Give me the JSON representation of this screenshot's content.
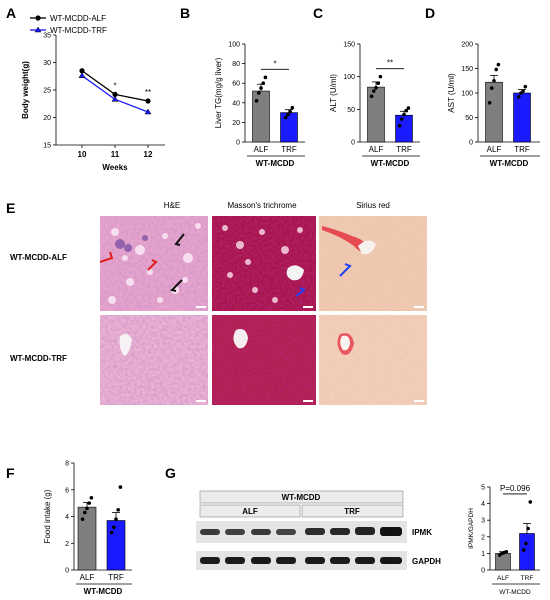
{
  "panels": {
    "A": "A",
    "B": "B",
    "C": "C",
    "D": "D",
    "E": "E",
    "F": "F",
    "G": "G"
  },
  "colors": {
    "alf": "#7f7f7f",
    "trf": "#1a1aff",
    "he_bg": "#e8a6cf",
    "tri_bg": "#a4134a",
    "sirius_bg": "#f0cbb2"
  },
  "chart_data": [
    {
      "id": "A",
      "type": "line",
      "x": [
        10,
        11,
        12
      ],
      "xlabel": "Weeks",
      "ylabel": "Body weight(g)",
      "ylim": [
        15,
        35
      ],
      "yticks": [
        15,
        20,
        25,
        30,
        35
      ],
      "series": [
        {
          "name": "WT-MCDD-ALF",
          "values": [
            28.5,
            24.2,
            23.0
          ],
          "marker": "circle",
          "color": "#000000"
        },
        {
          "name": "WT-MCDD-TRF",
          "values": [
            27.6,
            23.3,
            21.0
          ],
          "marker": "triangle",
          "color": "#1a1aff"
        }
      ],
      "annotations": [
        "*",
        "**"
      ]
    },
    {
      "id": "B",
      "type": "bar",
      "categories": [
        "ALF",
        "TRF"
      ],
      "values": [
        52,
        30
      ],
      "errors": [
        7,
        3
      ],
      "points": [
        [
          42,
          50,
          55,
          60,
          66
        ],
        [
          25,
          28,
          31,
          35
        ]
      ],
      "ylabel": "Liver TG(mg/g liver)",
      "ylim": [
        0,
        100
      ],
      "yticks": [
        0,
        20,
        40,
        60,
        80,
        100
      ],
      "group_label": "WT-MCDD",
      "significance": "*"
    },
    {
      "id": "C",
      "type": "bar",
      "categories": [
        "ALF",
        "TRF"
      ],
      "values": [
        84,
        41
      ],
      "errors": [
        8,
        6
      ],
      "points": [
        [
          70,
          78,
          83,
          90,
          100
        ],
        [
          25,
          35,
          42,
          48,
          52
        ]
      ],
      "ylabel": "ALT (U/ml)",
      "ylim": [
        0,
        150
      ],
      "yticks": [
        0,
        50,
        100,
        150
      ],
      "group_label": "WT-MCDD",
      "significance": "**"
    },
    {
      "id": "D",
      "type": "bar",
      "categories": [
        "ALF",
        "TRF"
      ],
      "values": [
        122,
        100
      ],
      "errors": [
        14,
        7
      ],
      "points": [
        [
          80,
          110,
          125,
          148,
          158
        ],
        [
          92,
          100,
          104,
          113
        ]
      ],
      "ylabel": "AST (U/ml)",
      "ylim": [
        0,
        200
      ],
      "yticks": [
        0,
        50,
        100,
        150,
        200
      ],
      "group_label": "WT-MCDD"
    },
    {
      "id": "F",
      "type": "bar",
      "categories": [
        "ALF",
        "TRF"
      ],
      "values": [
        4.7,
        3.7
      ],
      "errors": [
        0.35,
        0.6
      ],
      "points": [
        [
          3.8,
          4.3,
          4.6,
          5.0,
          5.4
        ],
        [
          2.8,
          3.2,
          3.8,
          4.5,
          6.2
        ]
      ],
      "ylabel": "Food intake (g)",
      "ylim": [
        0,
        8
      ],
      "yticks": [
        0,
        2,
        4,
        6,
        8
      ],
      "group_label": "WT-MCDD"
    },
    {
      "id": "G_quant",
      "type": "bar",
      "categories": [
        "ALF",
        "TRF"
      ],
      "values": [
        1.0,
        2.2
      ],
      "errors": [
        0.1,
        0.6
      ],
      "points": [
        [
          0.9,
          1.0,
          1.05,
          1.1
        ],
        [
          1.2,
          1.6,
          2.5,
          4.1
        ]
      ],
      "ylabel": "IPMK/GAPDH",
      "ylim": [
        0,
        5
      ],
      "yticks": [
        0,
        1,
        2,
        3,
        4,
        5
      ],
      "group_label": "WT-MCDD",
      "significance": "P=0.096"
    }
  ],
  "histology": {
    "columns": [
      "H&E",
      "Masson's trichrome",
      "Sirius red"
    ],
    "rows": [
      "WT-MCDD-ALF",
      "WT-MCDD-TRF"
    ]
  },
  "western": {
    "header": "WT-MCDD",
    "groups": [
      "ALF",
      "TRF"
    ],
    "bands": [
      "IPMK",
      "GAPDH"
    ]
  }
}
